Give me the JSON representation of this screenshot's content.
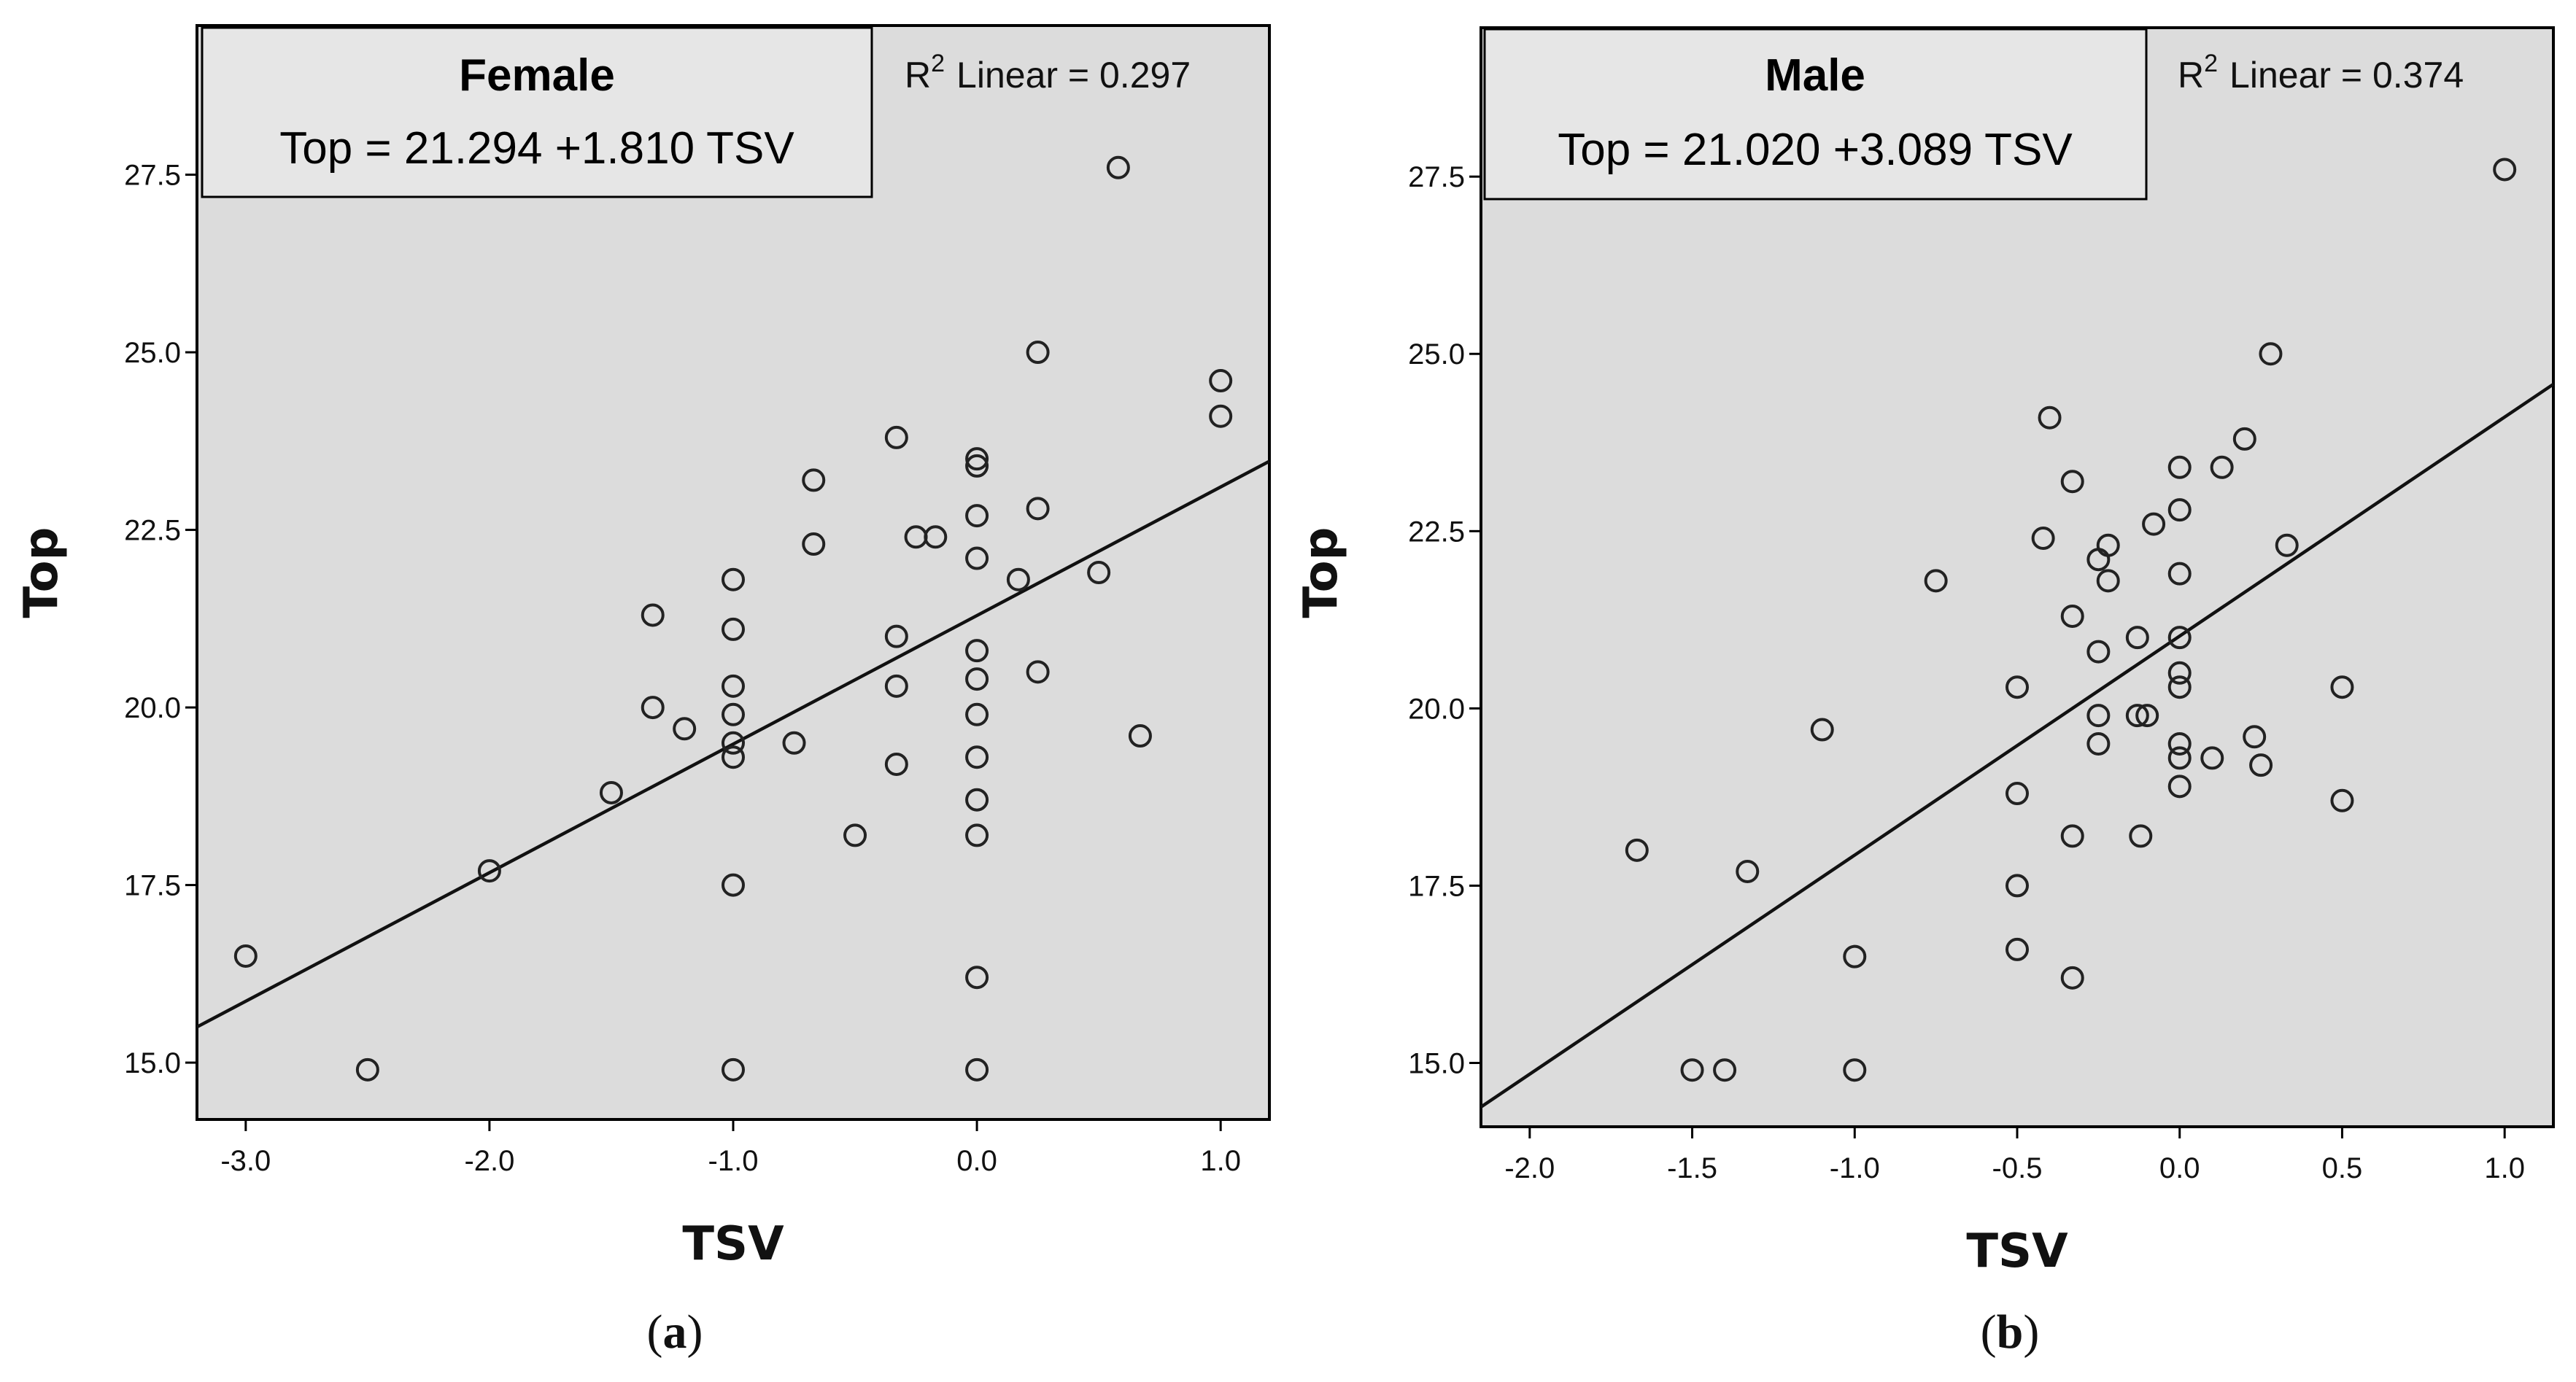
{
  "chart_data": [
    {
      "type": "scatter",
      "panel_label": "a",
      "group": "Female",
      "equation": "Top = 21.294 +1.810 TSV",
      "r2_prefix": "R",
      "r2_sup": "2",
      "r2_suffix": "Linear = 0.297",
      "xlabel": "TSV",
      "ylabel": "Top",
      "xlim": [
        -3.2,
        1.2
      ],
      "ylim": [
        14.2,
        29.6
      ],
      "x_ticks": [
        -3.0,
        -2.0,
        -1.0,
        0.0,
        1.0
      ],
      "x_tick_labels": [
        "-3.0",
        "-2.0",
        "-1.0",
        "0.0",
        "1.0"
      ],
      "y_ticks": [
        15.0,
        17.5,
        20.0,
        22.5,
        25.0,
        27.5
      ],
      "y_tick_labels": [
        "15.0",
        "17.5",
        "20.0",
        "22.5",
        "25.0",
        "27.5"
      ],
      "fit": {
        "intercept": 21.294,
        "slope": 1.81
      },
      "points": [
        [
          -3.0,
          16.5
        ],
        [
          -2.5,
          14.9
        ],
        [
          -2.0,
          17.7
        ],
        [
          -1.5,
          18.8
        ],
        [
          -1.33,
          21.3
        ],
        [
          -1.33,
          20.0
        ],
        [
          -1.2,
          19.7
        ],
        [
          -1.0,
          21.8
        ],
        [
          -1.0,
          21.1
        ],
        [
          -1.0,
          20.3
        ],
        [
          -1.0,
          19.9
        ],
        [
          -1.0,
          19.5
        ],
        [
          -1.0,
          19.3
        ],
        [
          -1.0,
          17.5
        ],
        [
          -1.0,
          14.9
        ],
        [
          -0.75,
          19.5
        ],
        [
          -0.67,
          23.2
        ],
        [
          -0.67,
          22.3
        ],
        [
          -0.5,
          18.2
        ],
        [
          -0.33,
          23.8
        ],
        [
          -0.33,
          21.0
        ],
        [
          -0.33,
          20.3
        ],
        [
          -0.33,
          19.2
        ],
        [
          -0.25,
          22.4
        ],
        [
          -0.17,
          22.4
        ],
        [
          0.0,
          23.5
        ],
        [
          0.0,
          23.4
        ],
        [
          0.0,
          22.7
        ],
        [
          0.0,
          22.1
        ],
        [
          0.0,
          20.8
        ],
        [
          0.0,
          20.4
        ],
        [
          0.0,
          19.9
        ],
        [
          0.0,
          19.3
        ],
        [
          0.0,
          18.7
        ],
        [
          0.0,
          18.2
        ],
        [
          0.0,
          16.2
        ],
        [
          0.0,
          14.9
        ],
        [
          0.17,
          21.8
        ],
        [
          0.25,
          25.0
        ],
        [
          0.25,
          22.8
        ],
        [
          0.25,
          20.5
        ],
        [
          0.5,
          21.9
        ],
        [
          0.58,
          27.6
        ],
        [
          0.67,
          19.6
        ],
        [
          1.0,
          24.6
        ],
        [
          1.0,
          24.1
        ]
      ]
    },
    {
      "type": "scatter",
      "panel_label": "b",
      "group": "Male",
      "equation": "Top = 21.020 +3.089 TSV",
      "r2_prefix": "R",
      "r2_sup": "2",
      "r2_suffix": "Linear = 0.374",
      "xlabel": "TSV",
      "ylabel": "Top",
      "xlim": [
        -2.15,
        1.15
      ],
      "ylim": [
        14.1,
        29.6
      ],
      "x_ticks": [
        -2.0,
        -1.5,
        -1.0,
        -0.5,
        0.0,
        0.5,
        1.0
      ],
      "x_tick_labels": [
        "-2.0",
        "-1.5",
        "-1.0",
        "-0.5",
        "0.0",
        "0.5",
        "1.0"
      ],
      "y_ticks": [
        15.0,
        17.5,
        20.0,
        22.5,
        25.0,
        27.5
      ],
      "y_tick_labels": [
        "15.0",
        "17.5",
        "20.0",
        "22.5",
        "25.0",
        "27.5"
      ],
      "fit": {
        "intercept": 21.02,
        "slope": 3.089
      },
      "points": [
        [
          -1.67,
          18.0
        ],
        [
          -1.5,
          14.9
        ],
        [
          -1.4,
          14.9
        ],
        [
          -1.33,
          17.7
        ],
        [
          -1.1,
          19.7
        ],
        [
          -1.0,
          16.5
        ],
        [
          -1.0,
          14.9
        ],
        [
          -0.75,
          21.8
        ],
        [
          -0.5,
          20.3
        ],
        [
          -0.5,
          18.8
        ],
        [
          -0.5,
          17.5
        ],
        [
          -0.5,
          16.6
        ],
        [
          -0.42,
          22.4
        ],
        [
          -0.4,
          24.1
        ],
        [
          -0.33,
          23.2
        ],
        [
          -0.33,
          21.3
        ],
        [
          -0.33,
          18.2
        ],
        [
          -0.33,
          16.2
        ],
        [
          -0.25,
          22.1
        ],
        [
          -0.25,
          20.8
        ],
        [
          -0.25,
          19.9
        ],
        [
          -0.25,
          19.5
        ],
        [
          -0.22,
          22.3
        ],
        [
          -0.22,
          21.8
        ],
        [
          -0.13,
          21.0
        ],
        [
          -0.13,
          19.9
        ],
        [
          -0.12,
          18.2
        ],
        [
          -0.1,
          19.9
        ],
        [
          -0.08,
          22.6
        ],
        [
          0.0,
          23.4
        ],
        [
          0.0,
          22.8
        ],
        [
          0.0,
          21.9
        ],
        [
          0.0,
          21.0
        ],
        [
          0.0,
          20.5
        ],
        [
          0.0,
          20.3
        ],
        [
          0.0,
          19.5
        ],
        [
          0.0,
          19.3
        ],
        [
          0.0,
          18.9
        ],
        [
          0.1,
          19.3
        ],
        [
          0.13,
          23.4
        ],
        [
          0.2,
          23.8
        ],
        [
          0.23,
          19.6
        ],
        [
          0.25,
          19.2
        ],
        [
          0.28,
          25.0
        ],
        [
          0.33,
          22.3
        ],
        [
          0.5,
          20.3
        ],
        [
          0.5,
          18.7
        ],
        [
          1.0,
          27.6
        ]
      ]
    }
  ]
}
